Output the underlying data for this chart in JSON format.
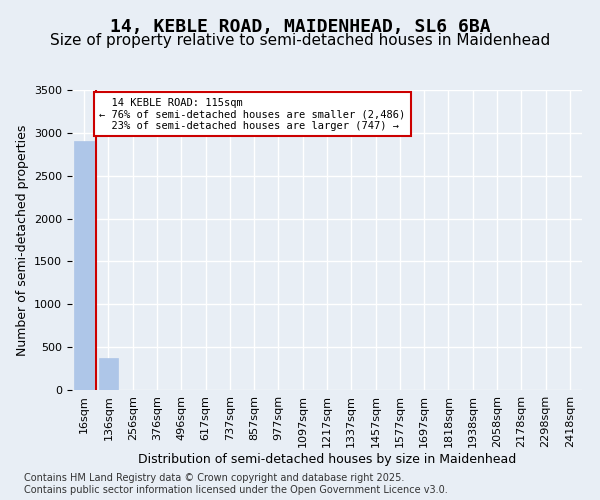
{
  "title1": "14, KEBLE ROAD, MAIDENHEAD, SL6 6BA",
  "title2": "Size of property relative to semi-detached houses in Maidenhead",
  "xlabel": "Distribution of semi-detached houses by size in Maidenhead",
  "ylabel": "Number of semi-detached properties",
  "footer": "Contains HM Land Registry data © Crown copyright and database right 2025.\nContains public sector information licensed under the Open Government Licence v3.0.",
  "bins": [
    "16sqm",
    "136sqm",
    "256sqm",
    "376sqm",
    "496sqm",
    "617sqm",
    "737sqm",
    "857sqm",
    "977sqm",
    "1097sqm",
    "1217sqm",
    "1337sqm",
    "1457sqm",
    "1577sqm",
    "1697sqm",
    "1818sqm",
    "1938sqm",
    "2058sqm",
    "2178sqm",
    "2298sqm",
    "2418sqm"
  ],
  "values": [
    2900,
    370,
    0,
    0,
    0,
    0,
    0,
    0,
    0,
    0,
    0,
    0,
    0,
    0,
    0,
    0,
    0,
    0,
    0,
    0,
    0
  ],
  "bar_color": "#aec6e8",
  "bar_edge_color": "#aec6e8",
  "property_size": 115,
  "property_bin_index": 0,
  "marker_label": "14 KEBLE ROAD: 115sqm",
  "smaller_pct": 76,
  "smaller_count": 2486,
  "larger_pct": 23,
  "larger_count": 747,
  "annotation_box_color": "#ffffff",
  "annotation_border_color": "#cc0000",
  "marker_line_color": "#cc0000",
  "ylim": [
    0,
    3500
  ],
  "bg_color": "#e8eef5",
  "plot_bg_color": "#e8eef5",
  "grid_color": "#ffffff",
  "title1_fontsize": 13,
  "title2_fontsize": 11,
  "axis_label_fontsize": 9,
  "tick_fontsize": 8,
  "footer_fontsize": 7
}
